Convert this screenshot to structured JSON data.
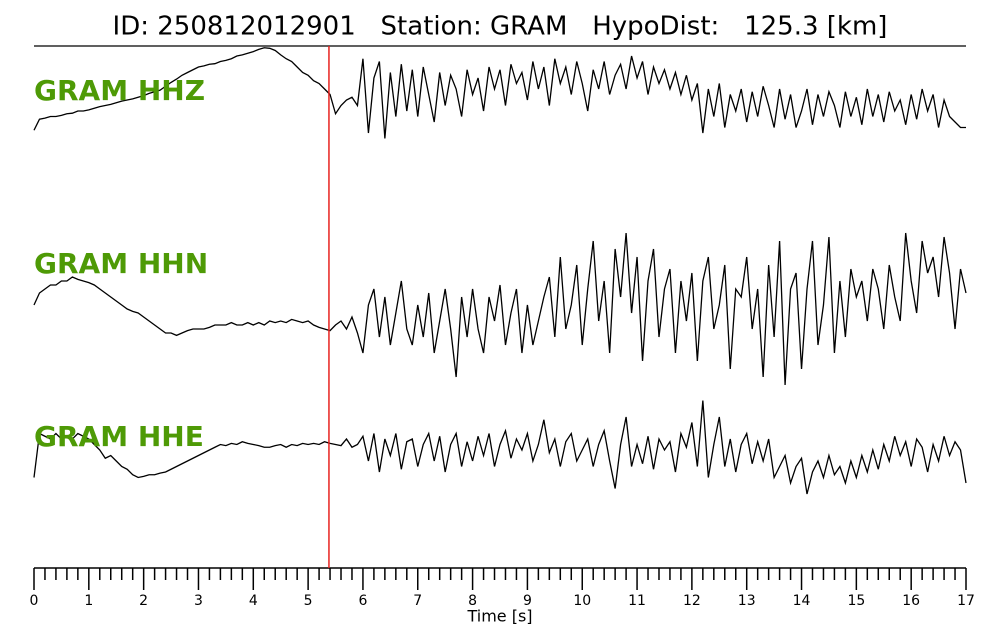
{
  "chart_data": {
    "type": "seismogram",
    "title": "ID: 250812012901   Station: GRAM   HypoDist:   125.3 [km]",
    "xlabel": "Time [s]",
    "xlim": [
      0,
      17
    ],
    "xticks": [
      0,
      1,
      2,
      3,
      4,
      5,
      6,
      7,
      8,
      9,
      10,
      11,
      12,
      13,
      14,
      15,
      16,
      17
    ],
    "ylim": [
      -1,
      1
    ],
    "label_color": "#4e9a06",
    "vlines": [
      {
        "x": 5.38,
        "color": "#e8231f"
      }
    ],
    "x": [
      0,
      0.1,
      0.2,
      0.3,
      0.4,
      0.5,
      0.6,
      0.7,
      0.8,
      0.9,
      1,
      1.1,
      1.2,
      1.3,
      1.4,
      1.5,
      1.6,
      1.7,
      1.8,
      1.9,
      2,
      2.1,
      2.2,
      2.3,
      2.4,
      2.5,
      2.6,
      2.7,
      2.8,
      2.9,
      3,
      3.1,
      3.2,
      3.3,
      3.4,
      3.5,
      3.6,
      3.7,
      3.8,
      3.9,
      4,
      4.1,
      4.2,
      4.3,
      4.4,
      4.5,
      4.6,
      4.7,
      4.8,
      4.9,
      5,
      5.1,
      5.2,
      5.3,
      5.4,
      5.5,
      5.6,
      5.7,
      5.8,
      5.9,
      6,
      6.1,
      6.2,
      6.3,
      6.4,
      6.5,
      6.6,
      6.7,
      6.8,
      6.9,
      7,
      7.1,
      7.2,
      7.3,
      7.4,
      7.5,
      7.6,
      7.7,
      7.8,
      7.9,
      8,
      8.1,
      8.2,
      8.3,
      8.4,
      8.5,
      8.6,
      8.7,
      8.8,
      8.9,
      9,
      9.1,
      9.2,
      9.3,
      9.4,
      9.5,
      9.6,
      9.7,
      9.8,
      9.9,
      10,
      10.1,
      10.2,
      10.3,
      10.4,
      10.5,
      10.6,
      10.7,
      10.8,
      10.9,
      11,
      11.1,
      11.2,
      11.3,
      11.4,
      11.5,
      11.6,
      11.7,
      11.8,
      11.9,
      12,
      12.1,
      12.2,
      12.3,
      12.4,
      12.5,
      12.6,
      12.7,
      12.8,
      12.9,
      13,
      13.1,
      13.2,
      13.3,
      13.4,
      13.5,
      13.6,
      13.7,
      13.8,
      13.9,
      14,
      14.1,
      14.2,
      14.3,
      14.4,
      14.5,
      14.6,
      14.7,
      14.8,
      14.9,
      15,
      15.1,
      15.2,
      15.3,
      15.4,
      15.5,
      15.6,
      15.7,
      15.8,
      15.9,
      16,
      16.1,
      16.2,
      16.3,
      16.4,
      16.5,
      16.6,
      16.7,
      16.8,
      16.9,
      17
    ],
    "series": [
      {
        "name": "GRAM HHZ",
        "color": "#000000",
        "values": [
          -0.55,
          -0.35,
          -0.33,
          -0.3,
          -0.3,
          -0.28,
          -0.25,
          -0.24,
          -0.2,
          -0.2,
          -0.18,
          -0.15,
          -0.12,
          -0.1,
          -0.08,
          -0.05,
          -0.02,
          0.0,
          0.02,
          0.05,
          0.08,
          0.12,
          0.15,
          0.18,
          0.25,
          0.32,
          0.38,
          0.45,
          0.5,
          0.55,
          0.6,
          0.62,
          0.65,
          0.66,
          0.7,
          0.72,
          0.75,
          0.8,
          0.82,
          0.85,
          0.88,
          0.92,
          0.95,
          0.94,
          0.9,
          0.82,
          0.75,
          0.7,
          0.6,
          0.5,
          0.45,
          0.35,
          0.3,
          0.2,
          0.1,
          -0.25,
          -0.1,
          0.0,
          0.05,
          -0.1,
          0.75,
          -0.6,
          0.4,
          0.7,
          -0.7,
          0.5,
          -0.3,
          0.65,
          -0.2,
          0.55,
          -0.3,
          0.6,
          0.1,
          -0.4,
          0.5,
          -0.1,
          0.45,
          0.2,
          -0.3,
          0.55,
          0.1,
          0.4,
          -0.2,
          0.6,
          0.2,
          0.55,
          -0.1,
          0.65,
          0.3,
          0.5,
          0.0,
          0.7,
          0.2,
          0.6,
          -0.1,
          0.75,
          0.3,
          0.6,
          0.1,
          0.7,
          0.3,
          -0.2,
          0.55,
          0.2,
          0.7,
          0.1,
          0.45,
          0.65,
          0.2,
          0.8,
          0.4,
          0.7,
          0.1,
          0.6,
          0.3,
          0.55,
          0.2,
          0.5,
          0.1,
          0.45,
          0.0,
          0.3,
          -0.6,
          0.2,
          -0.3,
          0.3,
          -0.5,
          0.1,
          -0.2,
          0.2,
          -0.4,
          0.15,
          -0.3,
          0.25,
          -0.1,
          -0.5,
          0.2,
          -0.35,
          0.1,
          -0.5,
          -0.2,
          0.2,
          -0.45,
          0.1,
          -0.3,
          0.15,
          -0.1,
          -0.5,
          0.15,
          -0.3,
          0.05,
          -0.45,
          0.2,
          -0.3,
          0.1,
          -0.4,
          0.15,
          -0.2,
          0.0,
          -0.45,
          0.1,
          -0.35,
          0.2,
          -0.2,
          0.1,
          -0.5,
          0.0,
          -0.3,
          -0.4,
          -0.5,
          -0.5
        ]
      },
      {
        "name": "GRAM HHN",
        "color": "#000000",
        "values": [
          0.0,
          0.15,
          0.2,
          0.25,
          0.25,
          0.3,
          0.3,
          0.35,
          0.32,
          0.3,
          0.28,
          0.25,
          0.2,
          0.15,
          0.1,
          0.05,
          0.0,
          -0.05,
          -0.08,
          -0.1,
          -0.15,
          -0.2,
          -0.25,
          -0.3,
          -0.35,
          -0.35,
          -0.38,
          -0.35,
          -0.32,
          -0.3,
          -0.3,
          -0.3,
          -0.28,
          -0.25,
          -0.25,
          -0.25,
          -0.22,
          -0.25,
          -0.25,
          -0.22,
          -0.25,
          -0.22,
          -0.25,
          -0.2,
          -0.22,
          -0.2,
          -0.22,
          -0.18,
          -0.2,
          -0.22,
          -0.2,
          -0.25,
          -0.28,
          -0.3,
          -0.32,
          -0.25,
          -0.2,
          -0.3,
          -0.15,
          -0.35,
          -0.6,
          0.0,
          0.2,
          -0.4,
          0.1,
          -0.5,
          -0.1,
          0.3,
          -0.3,
          -0.5,
          0.0,
          -0.4,
          0.15,
          -0.6,
          -0.2,
          0.2,
          -0.3,
          -0.9,
          0.1,
          -0.4,
          0.2,
          -0.3,
          -0.6,
          0.1,
          -0.2,
          0.25,
          -0.5,
          -0.1,
          0.2,
          -0.6,
          0.0,
          -0.5,
          -0.2,
          0.1,
          0.35,
          -0.4,
          0.6,
          -0.3,
          0.0,
          0.5,
          -0.5,
          0.2,
          0.8,
          -0.2,
          0.3,
          -0.6,
          0.7,
          0.1,
          0.9,
          -0.1,
          0.6,
          -0.7,
          0.3,
          0.7,
          -0.4,
          0.2,
          0.45,
          -0.6,
          0.3,
          -0.2,
          0.4,
          -0.7,
          0.3,
          0.6,
          -0.3,
          0.0,
          0.5,
          -0.8,
          0.2,
          0.1,
          0.6,
          -0.3,
          0.2,
          -0.9,
          0.5,
          -0.4,
          0.8,
          -1.0,
          0.2,
          0.4,
          -0.8,
          0.2,
          0.8,
          -0.5,
          0.0,
          0.85,
          -0.6,
          0.3,
          -0.4,
          0.45,
          0.1,
          0.3,
          -0.2,
          0.45,
          0.2,
          -0.3,
          0.5,
          0.1,
          -0.2,
          0.9,
          0.3,
          -0.1,
          0.8,
          0.4,
          0.6,
          0.1,
          0.85,
          0.4,
          -0.3,
          0.45,
          0.15
        ]
      },
      {
        "name": "GRAM HHE",
        "color": "#000000",
        "values": [
          -0.5,
          0.3,
          0.25,
          0.2,
          0.3,
          0.2,
          0.25,
          0.2,
          0.3,
          0.25,
          0.2,
          0.1,
          0.0,
          -0.15,
          -0.1,
          -0.2,
          -0.3,
          -0.35,
          -0.45,
          -0.5,
          -0.48,
          -0.45,
          -0.45,
          -0.42,
          -0.4,
          -0.35,
          -0.3,
          -0.25,
          -0.2,
          -0.15,
          -0.1,
          -0.05,
          0.0,
          0.05,
          0.1,
          0.08,
          0.12,
          0.1,
          0.15,
          0.12,
          0.1,
          0.08,
          0.05,
          0.05,
          0.08,
          0.1,
          0.05,
          0.1,
          0.08,
          0.12,
          0.1,
          0.12,
          0.1,
          0.15,
          0.12,
          0.1,
          0.08,
          0.2,
          0.05,
          0.1,
          0.25,
          -0.2,
          0.3,
          -0.4,
          0.2,
          -0.1,
          0.3,
          -0.35,
          0.15,
          0.2,
          -0.3,
          0.1,
          0.3,
          -0.2,
          0.25,
          -0.4,
          0.1,
          0.3,
          -0.3,
          0.15,
          -0.2,
          0.25,
          -0.1,
          0.3,
          -0.3,
          0.1,
          0.35,
          -0.15,
          0.2,
          0.0,
          0.3,
          -0.2,
          0.1,
          0.55,
          -0.05,
          0.2,
          -0.3,
          0.15,
          0.3,
          -0.2,
          0.0,
          0.2,
          -0.3,
          0.1,
          0.35,
          -0.2,
          -0.7,
          0.1,
          0.6,
          -0.3,
          0.1,
          -0.25,
          0.25,
          -0.35,
          0.2,
          0.0,
          0.15,
          -0.4,
          0.3,
          0.05,
          0.5,
          -0.3,
          0.9,
          -0.5,
          0.1,
          0.6,
          -0.3,
          0.2,
          -0.4,
          0.1,
          0.3,
          -0.25,
          0.15,
          -0.2,
          0.2,
          -0.5,
          -0.3,
          -0.1,
          -0.6,
          -0.3,
          -0.15,
          -0.8,
          -0.4,
          -0.2,
          -0.5,
          -0.1,
          -0.45,
          -0.3,
          -0.6,
          -0.2,
          -0.5,
          -0.1,
          -0.4,
          0.0,
          -0.35,
          0.1,
          -0.2,
          0.25,
          -0.1,
          0.15,
          -0.3,
          0.2,
          0.05,
          -0.4,
          0.1,
          -0.2,
          0.25,
          -0.1,
          0.15,
          0.0,
          -0.6
        ]
      }
    ]
  }
}
